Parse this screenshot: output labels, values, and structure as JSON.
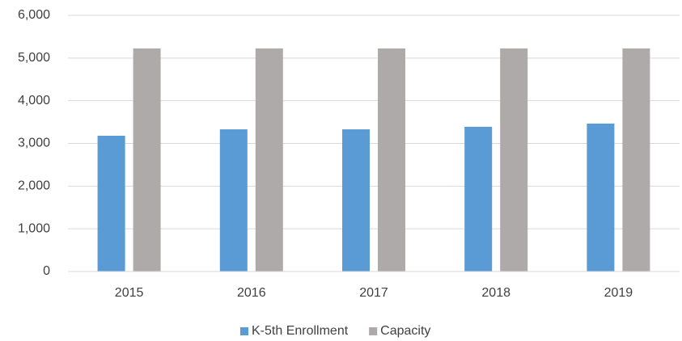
{
  "chart_data": {
    "type": "bar",
    "categories": [
      "2015",
      "2016",
      "2017",
      "2018",
      "2019"
    ],
    "series": [
      {
        "name": "K-5th Enrollment",
        "color": "#5b9bd5",
        "values": [
          3180,
          3330,
          3330,
          3390,
          3465
        ]
      },
      {
        "name": "Capacity",
        "color": "#aeaaaa",
        "values": [
          5225,
          5225,
          5225,
          5225,
          5225
        ]
      }
    ],
    "ylim": [
      0,
      6000
    ],
    "yticks": [
      0,
      {
        "value": 1000,
        "label": "1,000"
      },
      {
        "value": 2000,
        "label": "2,000"
      },
      {
        "value": 3000,
        "label": "3,000"
      },
      {
        "value": 4000,
        "label": "4,000"
      },
      {
        "value": 5000,
        "label": "5,000"
      },
      {
        "value": 6000,
        "label": "6,000"
      }
    ],
    "grid": true,
    "legend": "bottom"
  }
}
